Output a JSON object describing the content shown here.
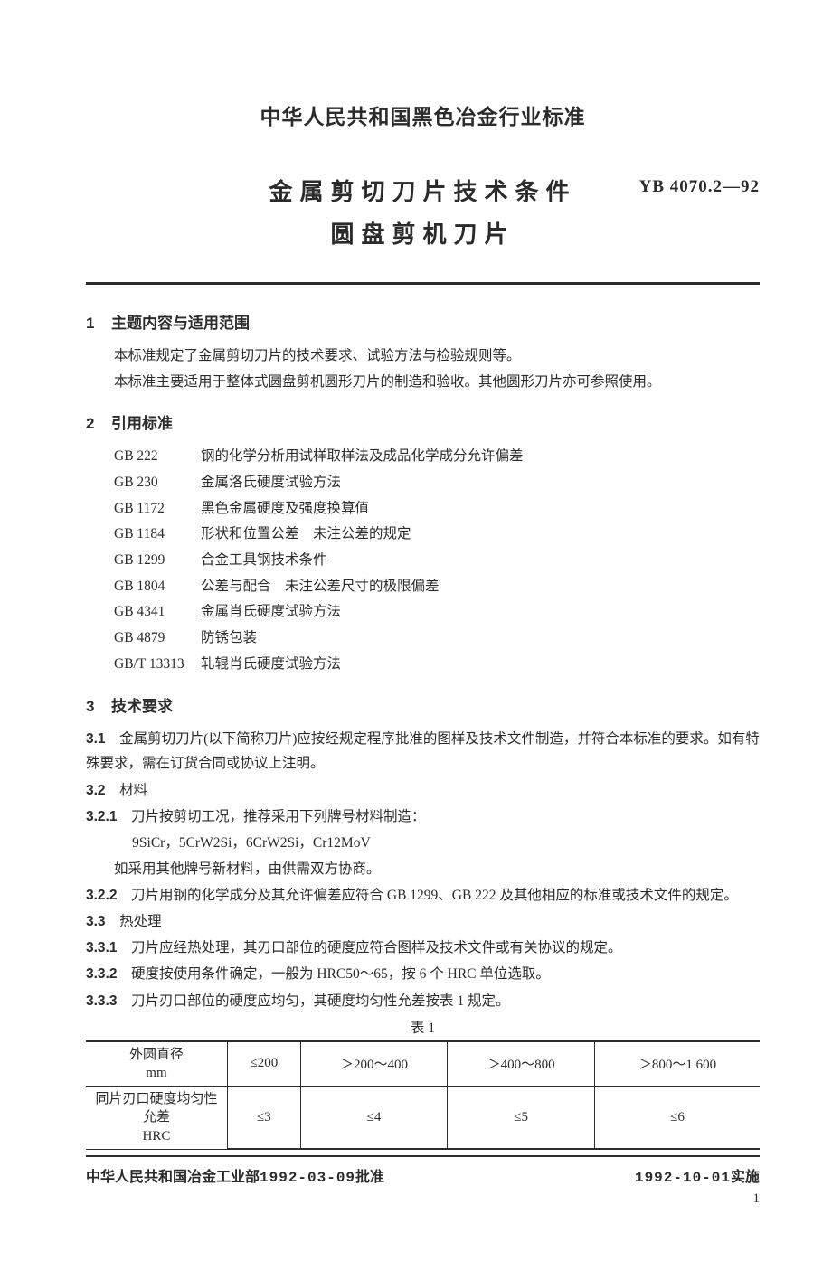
{
  "header": {
    "org_title": "中华人民共和国黑色冶金行业标准",
    "title_main": "金属剪切刀片技术条件",
    "title_sub": "圆盘剪机刀片",
    "std_code": "YB 4070.2—92"
  },
  "section1": {
    "num": "1",
    "title": "主题内容与适用范围",
    "p1": "本标准规定了金属剪切刀片的技术要求、试验方法与检验规则等。",
    "p2": "本标准主要适用于整体式圆盘剪机圆形刀片的制造和验收。其他圆形刀片亦可参照使用。"
  },
  "section2": {
    "num": "2",
    "title": "引用标准",
    "refs": [
      {
        "code": "GB 222",
        "text": "钢的化学分析用试样取样法及成品化学成分允许偏差"
      },
      {
        "code": "GB 230",
        "text": "金属洛氏硬度试验方法"
      },
      {
        "code": "GB 1172",
        "text": "黑色金属硬度及强度换算值"
      },
      {
        "code": "GB 1184",
        "text": "形状和位置公差　未注公差的规定"
      },
      {
        "code": "GB 1299",
        "text": "合金工具钢技术条件"
      },
      {
        "code": "GB 1804",
        "text": "公差与配合　未注公差尺寸的极限偏差"
      },
      {
        "code": "GB 4341",
        "text": "金属肖氏硬度试验方法"
      },
      {
        "code": "GB 4879",
        "text": "防锈包装"
      },
      {
        "code": "GB/T 13313",
        "text": "轧辊肖氏硬度试验方法"
      }
    ]
  },
  "section3": {
    "num": "3",
    "title": "技术要求",
    "c3_1": {
      "num": "3.1",
      "text": "金属剪切刀片(以下简称刀片)应按经规定程序批准的图样及技术文件制造，并符合本标准的要求。如有特殊要求，需在订货合同或协议上注明。"
    },
    "c3_2": {
      "num": "3.2",
      "text": "材料"
    },
    "c3_2_1": {
      "num": "3.2.1",
      "text": "刀片按剪切工况，推荐采用下列牌号材料制造："
    },
    "c3_2_1_mat": "9SiCr，5CrW2Si，6CrW2Si，Cr12MoV",
    "c3_2_1_note": "如采用其他牌号新材料，由供需双方协商。",
    "c3_2_2": {
      "num": "3.2.2",
      "text": "刀片用钢的化学成分及其允许偏差应符合 GB 1299、GB 222 及其他相应的标准或技术文件的规定。"
    },
    "c3_3": {
      "num": "3.3",
      "text": "热处理"
    },
    "c3_3_1": {
      "num": "3.3.1",
      "text": "刀片应经热处理，其刃口部位的硬度应符合图样及技术文件或有关协议的规定。"
    },
    "c3_3_2": {
      "num": "3.3.2",
      "text": "硬度按使用条件确定，一般为 HRC50～65，按 6 个 HRC 单位选取。"
    },
    "c3_3_3": {
      "num": "3.3.3",
      "text": "刀片刃口部位的硬度应均匀，其硬度均匀性允差按表 1 规定。"
    }
  },
  "table1": {
    "caption": "表 1",
    "row_head1_a": "外圆直径",
    "row_head1_b": "mm",
    "row_head2_a": "同片刃口硬度均匀性允差",
    "row_head2_b": "HRC",
    "cols": [
      "≤200",
      "＞200～400",
      "＞400～800",
      "＞800～1 600"
    ],
    "vals": [
      "≤3",
      "≤4",
      "≤5",
      "≤6"
    ],
    "col_width_first": "21%",
    "col_width_rest": "19.75%",
    "border_color": "#2b2b2b"
  },
  "footer": {
    "left_prefix": "中华人民共和国冶金工业部",
    "left_date": "1992-03-09",
    "left_suffix": "批准",
    "right_date": "1992-10-01",
    "right_suffix": "实施",
    "page_num": "1"
  }
}
